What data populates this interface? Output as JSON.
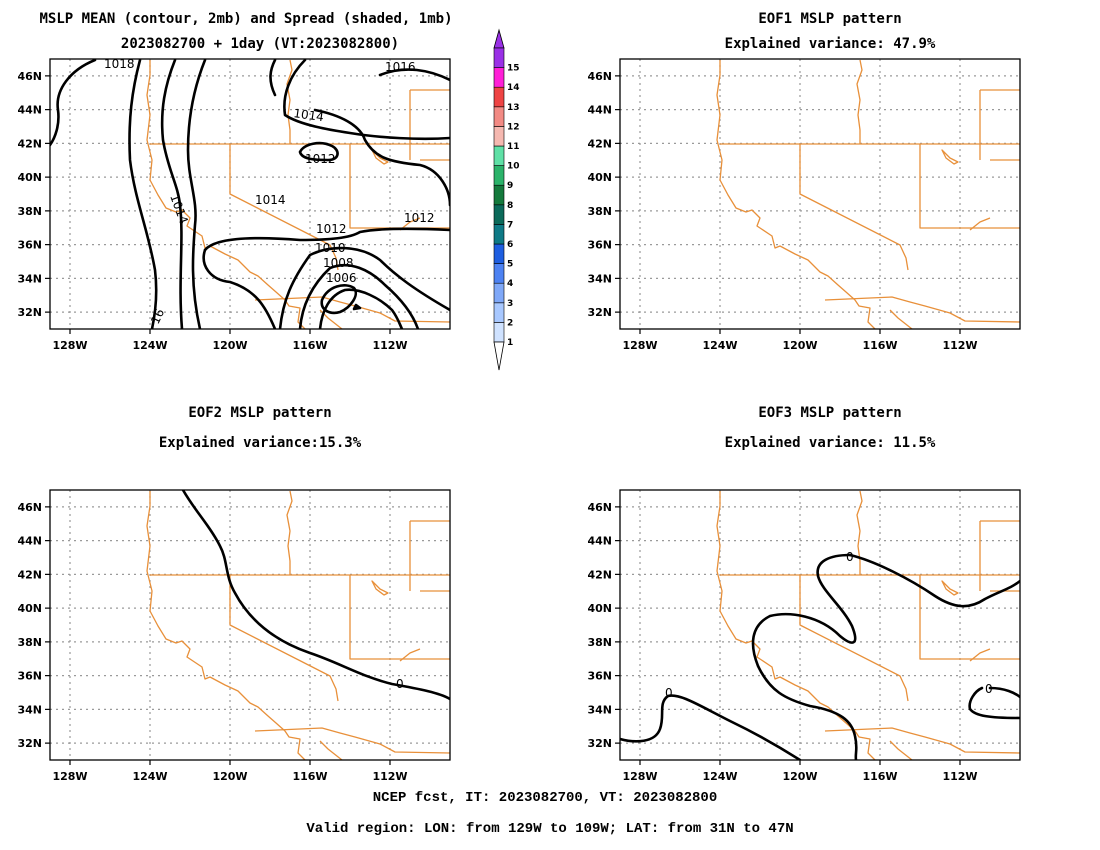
{
  "figure": {
    "footer_line1": "NCEP fcst, IT: 2023082700, VT: 2023082800",
    "footer_line2": "Valid region: LON: from 129W to 109W; LAT: from 31N to 47N"
  },
  "region": {
    "lon_min": -129,
    "lon_max": -109,
    "lat_min": 31,
    "lat_max": 47
  },
  "axes": {
    "lon_ticks": [
      -128,
      -124,
      -120,
      -116,
      -112
    ],
    "lon_labels": [
      "128W",
      "124W",
      "120W",
      "116W",
      "112W"
    ],
    "lat_ticks": [
      32,
      34,
      36,
      38,
      40,
      42,
      44,
      46
    ],
    "lat_labels": [
      "32N",
      "34N",
      "36N",
      "38N",
      "40N",
      "42N",
      "44N",
      "46N"
    ]
  },
  "colorbar": {
    "levels": [
      "1",
      "2",
      "3",
      "4",
      "5",
      "6",
      "7",
      "8",
      "9",
      "10",
      "11",
      "12",
      "13",
      "14",
      "15"
    ],
    "colors": [
      "#cfe2ff",
      "#a8c8ff",
      "#7fa8f8",
      "#4d82f2",
      "#1e5ee0",
      "#0e7a86",
      "#0b6a5a",
      "#147a3c",
      "#2bb36a",
      "#5fe0a6",
      "#f5b8b0",
      "#f28a84",
      "#ee4444",
      "#ff1fd7",
      "#9a30e6"
    ]
  },
  "panels": [
    {
      "id": "mean",
      "title_line1": "MSLP MEAN (contour, 2mb) and Spread (shaded, 1mb)",
      "title_line2": "2023082700 + 1day (VT:2023082800)",
      "contour_labels": [
        "1018",
        "1016",
        "1014",
        "1012",
        "1014",
        "1014",
        "1012",
        "1012",
        "1010",
        "1008",
        "1006",
        "16"
      ]
    },
    {
      "id": "eof1",
      "title_line1": "EOF1 MSLP pattern",
      "title_line2": "Explained variance: 47.9%",
      "contour_labels": []
    },
    {
      "id": "eof2",
      "title_line1": "EOF2 MSLP pattern",
      "title_line2": "Explained variance:15.3%",
      "contour_labels": [
        "0"
      ]
    },
    {
      "id": "eof3",
      "title_line1": "EOF3 MSLP pattern",
      "title_line2": "Explained variance: 11.5%",
      "contour_labels": [
        "0",
        "0",
        "0"
      ]
    }
  ]
}
